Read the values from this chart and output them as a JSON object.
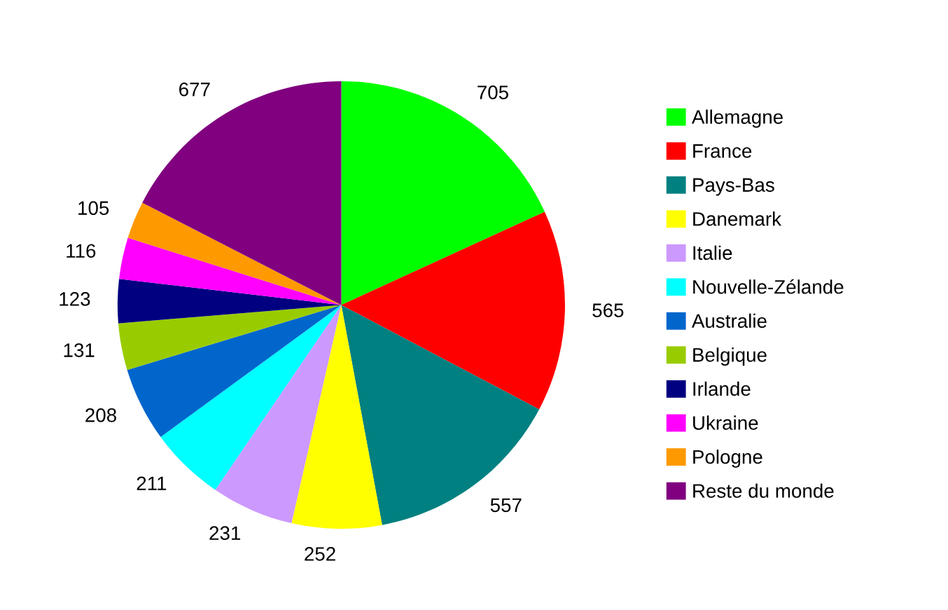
{
  "chart_data": {
    "type": "pie",
    "categories": [
      "Allemagne",
      "France",
      "Pays-Bas",
      "Danemark",
      "Italie",
      "Nouvelle-Zélande",
      "Australie",
      "Belgique",
      "Irlande",
      "Ukraine",
      "Pologne",
      "Reste du monde"
    ],
    "values": [
      705,
      565,
      557,
      252,
      231,
      211,
      208,
      131,
      123,
      116,
      105,
      677
    ],
    "colors": [
      "#00ff00",
      "#ff0000",
      "#008080",
      "#ffff00",
      "#cc99ff",
      "#00ffff",
      "#0066cc",
      "#99cc00",
      "#000080",
      "#ff00ff",
      "#ff9900",
      "#800080"
    ],
    "data_labels": true,
    "legend": "right"
  }
}
